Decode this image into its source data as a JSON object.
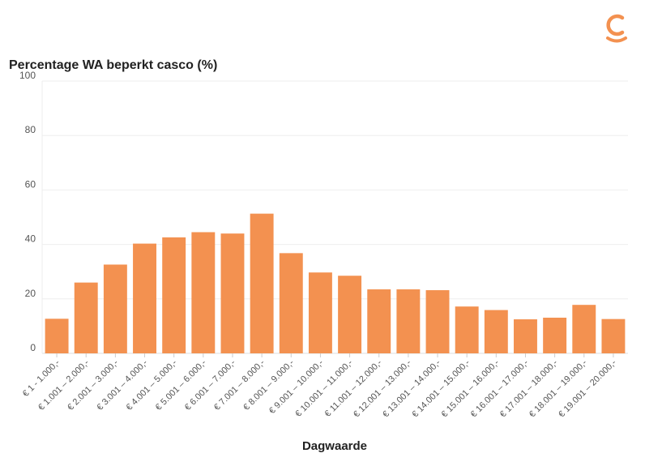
{
  "chart_data": {
    "type": "bar",
    "title": "Percentage WA beperkt casco (%)",
    "xlabel": "Dagwaarde",
    "ylabel": "",
    "ylim": [
      0,
      100
    ],
    "yticks": [
      0,
      20,
      40,
      60,
      80,
      100
    ],
    "grid": true,
    "bar_color": "#f39150",
    "categories": [
      "€ 1 - 1.000,-",
      "€ 1.001 – 2.000,-",
      "€ 2.001 – 3.000,-",
      "€ 3.001 – 4.000,-",
      "€ 4.001 – 5.000,-",
      "€ 5.001 – 6.000,-",
      "€ 6.001 – 7.000,-",
      "€ 7.001 – 8.000,-",
      "€ 8.001 – 9.000,-",
      "€ 9.001 – 10.000,-",
      "€ 10.001 – 11.000,-",
      "€ 11.001 – 12.000,-",
      "€ 12.001 – 13.000,-",
      "€ 13.001 – 14.000,-",
      "€ 14.001 – 15.000,-",
      "€ 15.001 – 16.000,-",
      "€ 16.001 – 17.000,-",
      "€ 17.001 – 18.000,-",
      "€ 18.001 – 19.000,-",
      "€ 19.001 – 20.000,-"
    ],
    "values": [
      12.7,
      26,
      32.6,
      40.3,
      42.6,
      44.5,
      44,
      51.3,
      36.8,
      29.7,
      28.5,
      23.5,
      23.5,
      23.2,
      17.2,
      15.9,
      12.5,
      13.1,
      17.8,
      12.6
    ]
  },
  "brand": {
    "logo_icon": "brand-logo-icon",
    "accent": "#f39150"
  }
}
